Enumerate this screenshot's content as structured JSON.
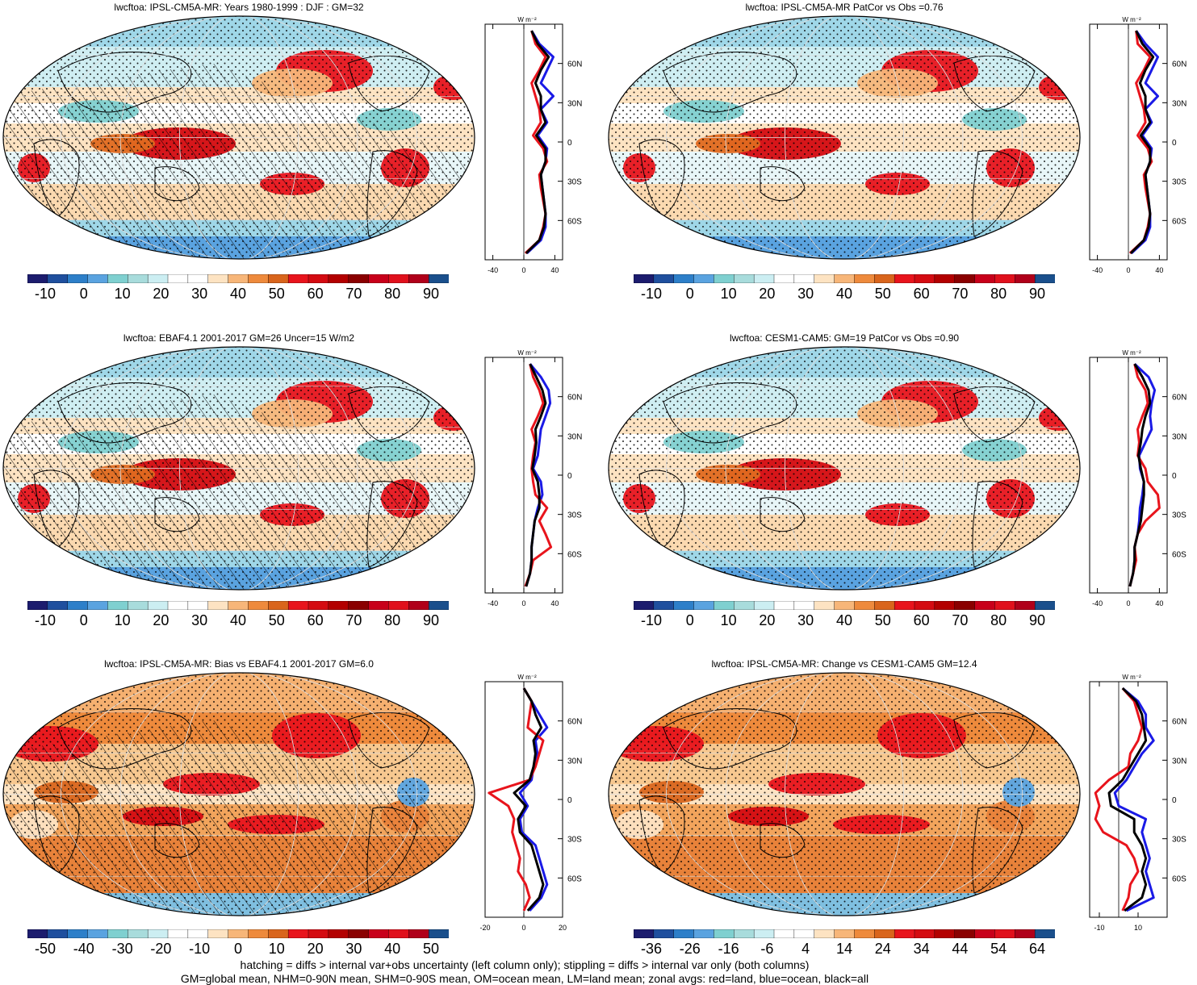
{
  "footer": {
    "line1": "hatching = diffs > internal var+obs uncertainty (left column only); stippling = diffs > internal var only (both columns)",
    "line2": "GM=global mean, NHM=0-90N mean, SHM=0-90S mean, OM=ocean mean, LM=land mean; zonal avgs: red=land, blue=ocean, black=all"
  },
  "colors": {
    "land": "#e8141c",
    "ocean": "#1a1ae6",
    "all": "#000000",
    "palette": [
      "#1c1c6e",
      "#1f4f9e",
      "#2d7fc9",
      "#5aa3e0",
      "#7fd0d0",
      "#a8dcdc",
      "#cceef2",
      "#ffffff",
      "#ffffff",
      "#fde3c2",
      "#f7b679",
      "#ee8a3c",
      "#d9651c",
      "#e8141c",
      "#d40b11",
      "#b30000",
      "#8a0000",
      "#c8001a",
      "#e0101c",
      "#b0001a",
      "#1a4f8c"
    ]
  },
  "chart_data": [
    {
      "type": "heatmap",
      "title": "lwcftoa: IPSL-CM5A-MR: Years 1980-1999 : DJF : GM=32",
      "colorbar_ticks": [
        "-10",
        "0",
        "10",
        "20",
        "30",
        "40",
        "50",
        "60",
        "70",
        "80",
        "90"
      ],
      "zonal": {
        "unit": "W m⁻²",
        "xlim": [
          -50,
          50
        ],
        "xticks": [
          "-40",
          "0",
          "40"
        ],
        "ylim": [
          -90,
          90
        ],
        "yticks": [
          "60N",
          "30N",
          "0",
          "30S",
          "60S"
        ],
        "lat": [
          85,
          75,
          65,
          55,
          45,
          35,
          25,
          15,
          5,
          -5,
          -15,
          -25,
          -35,
          -45,
          -55,
          -65,
          -75,
          -85
        ],
        "land": [
          10,
          15,
          28,
          20,
          10,
          15,
          20,
          22,
          12,
          25,
          30,
          20,
          22,
          25,
          28,
          25,
          20,
          2
        ],
        "ocean": [
          10,
          20,
          38,
          30,
          22,
          38,
          22,
          30,
          18,
          30,
          28,
          22,
          24,
          26,
          28,
          28,
          22,
          4
        ],
        "all": [
          10,
          18,
          32,
          22,
          15,
          22,
          22,
          28,
          16,
          28,
          28,
          22,
          24,
          26,
          28,
          26,
          20,
          3
        ]
      }
    },
    {
      "type": "heatmap",
      "title": "lwcftoa: IPSL-CM5A-MR PatCor vs Obs =0.76",
      "colorbar_ticks": [
        "-10",
        "0",
        "10",
        "20",
        "30",
        "40",
        "50",
        "60",
        "70",
        "80",
        "90"
      ],
      "zonal": {
        "unit": "W m⁻²",
        "xlim": [
          -50,
          50
        ],
        "xticks": [
          "-40",
          "0",
          "40"
        ],
        "ylim": [
          -90,
          90
        ],
        "yticks": [
          "60N",
          "30N",
          "0",
          "30S",
          "60S"
        ],
        "lat": [
          85,
          75,
          65,
          55,
          45,
          35,
          25,
          15,
          5,
          -5,
          -15,
          -25,
          -35,
          -45,
          -55,
          -65,
          -75,
          -85
        ],
        "land": [
          10,
          12,
          28,
          20,
          10,
          15,
          20,
          22,
          12,
          25,
          30,
          20,
          22,
          25,
          28,
          25,
          20,
          2
        ],
        "ocean": [
          10,
          22,
          38,
          30,
          22,
          38,
          22,
          30,
          18,
          30,
          28,
          22,
          24,
          26,
          28,
          28,
          22,
          4
        ],
        "all": [
          10,
          18,
          32,
          22,
          15,
          22,
          22,
          28,
          16,
          28,
          28,
          22,
          24,
          26,
          28,
          26,
          20,
          3
        ]
      }
    },
    {
      "type": "heatmap",
      "title": "lwcftoa: EBAF4.1 2001-2017 GM=26 Uncer=15 W/m2",
      "colorbar_ticks": [
        "-10",
        "0",
        "10",
        "20",
        "30",
        "40",
        "50",
        "60",
        "70",
        "80",
        "90"
      ],
      "zonal": {
        "unit": "W m⁻²",
        "xlim": [
          -50,
          50
        ],
        "xticks": [
          "-40",
          "0",
          "40"
        ],
        "ylim": [
          -90,
          90
        ],
        "yticks": [
          "60N",
          "30N",
          "0",
          "30S",
          "60S"
        ],
        "lat": [
          85,
          75,
          65,
          55,
          45,
          35,
          25,
          15,
          5,
          -5,
          -15,
          -25,
          -35,
          -45,
          -55,
          -65,
          -75,
          -85
        ],
        "land": [
          8,
          12,
          20,
          25,
          18,
          10,
          15,
          12,
          10,
          12,
          15,
          30,
          20,
          28,
          35,
          12,
          8,
          2
        ],
        "ocean": [
          8,
          22,
          32,
          34,
          28,
          22,
          20,
          18,
          12,
          22,
          24,
          18,
          14,
          12,
          10,
          10,
          8,
          3
        ],
        "all": [
          8,
          16,
          24,
          28,
          22,
          15,
          16,
          14,
          11,
          18,
          20,
          20,
          14,
          12,
          10,
          10,
          8,
          3
        ]
      }
    },
    {
      "type": "heatmap",
      "title": "lwcftoa: CESM1-CAM5: GM=19 PatCor vs Obs =0.90",
      "colorbar_ticks": [
        "-10",
        "0",
        "10",
        "20",
        "30",
        "40",
        "50",
        "60",
        "70",
        "80",
        "90"
      ],
      "zonal": {
        "unit": "W m⁻²",
        "xlim": [
          -50,
          50
        ],
        "xticks": [
          "-40",
          "0",
          "40"
        ],
        "ylim": [
          -90,
          90
        ],
        "yticks": [
          "60N",
          "30N",
          "0",
          "30S",
          "60S"
        ],
        "lat": [
          85,
          75,
          65,
          55,
          45,
          35,
          25,
          15,
          5,
          -5,
          -15,
          -25,
          -35,
          -45,
          -55,
          -65,
          -75,
          -85
        ],
        "land": [
          8,
          12,
          22,
          25,
          18,
          12,
          14,
          12,
          22,
          25,
          38,
          40,
          22,
          12,
          8,
          10,
          6,
          2
        ],
        "ocean": [
          8,
          26,
          34,
          30,
          28,
          30,
          22,
          14,
          15,
          20,
          18,
          15,
          14,
          12,
          8,
          8,
          6,
          2
        ],
        "all": [
          8,
          18,
          26,
          28,
          22,
          18,
          16,
          13,
          16,
          20,
          20,
          18,
          16,
          12,
          8,
          8,
          6,
          2
        ]
      }
    },
    {
      "type": "heatmap",
      "title": "lwcftoa: IPSL-CM5A-MR: Bias vs EBAF4.1 2001-2017 GM=6.0",
      "colorbar_ticks": [
        "-50",
        "-40",
        "-30",
        "-20",
        "-10",
        "0",
        "10",
        "20",
        "30",
        "40",
        "50"
      ],
      "zonal": {
        "unit": "W m⁻²",
        "xlim": [
          -20,
          20
        ],
        "xticks": [
          "-20",
          "0",
          "20"
        ],
        "ylim": [
          -90,
          90
        ],
        "yticks": [
          "60N",
          "30N",
          "0",
          "30S",
          "60S"
        ],
        "lat": [
          85,
          75,
          65,
          55,
          45,
          35,
          25,
          15,
          5,
          -5,
          -15,
          -25,
          -35,
          -45,
          -55,
          -65,
          -75,
          -85
        ],
        "land": [
          0,
          4,
          3,
          2,
          10,
          8,
          6,
          3,
          -18,
          -8,
          -5,
          -6,
          -4,
          -2,
          -3,
          1,
          3,
          0
        ],
        "ocean": [
          0,
          4,
          8,
          12,
          6,
          7,
          5,
          4,
          -2,
          2,
          -2,
          -1,
          6,
          8,
          10,
          12,
          9,
          3
        ],
        "all": [
          0,
          4,
          6,
          9,
          5,
          6,
          5,
          3,
          -5,
          1,
          -3,
          -2,
          4,
          6,
          8,
          10,
          8,
          2
        ]
      }
    },
    {
      "type": "heatmap",
      "title": "lwcftoa: IPSL-CM5A-MR: Change vs CESM1-CAM5 GM=12.4",
      "colorbar_ticks": [
        "-36",
        "-26",
        "-16",
        "-6",
        "4",
        "14",
        "24",
        "34",
        "44",
        "54",
        "64"
      ],
      "zonal": {
        "unit": "W m⁻²",
        "xlim": [
          -15,
          25
        ],
        "xticks": [
          "-10",
          "10"
        ],
        "ylim": [
          -90,
          90
        ],
        "yticks": [
          "60N",
          "30N",
          "0",
          "30S",
          "60S"
        ],
        "lat": [
          85,
          75,
          65,
          55,
          45,
          35,
          25,
          15,
          5,
          -5,
          -15,
          -25,
          -35,
          -45,
          -55,
          -65,
          -75,
          -85
        ],
        "land": [
          2,
          8,
          10,
          12,
          10,
          6,
          5,
          -5,
          -12,
          -10,
          -12,
          -8,
          4,
          8,
          10,
          6,
          5,
          2
        ],
        "ocean": [
          2,
          10,
          14,
          14,
          18,
          12,
          8,
          4,
          -2,
          0,
          14,
          12,
          14,
          16,
          14,
          16,
          18,
          4
        ],
        "all": [
          2,
          9,
          12,
          13,
          14,
          10,
          6,
          2,
          -5,
          -4,
          8,
          8,
          12,
          14,
          12,
          14,
          12,
          3
        ]
      }
    }
  ]
}
